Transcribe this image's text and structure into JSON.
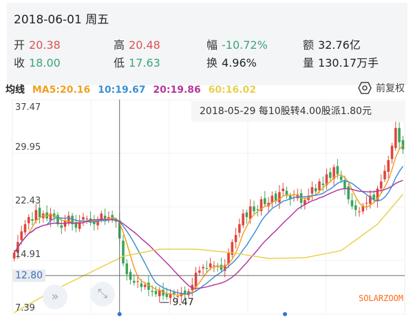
{
  "header": {
    "date": "2018-06-01 周五",
    "stats": [
      {
        "label": "开",
        "value": "20.38",
        "color": "red"
      },
      {
        "label": "高",
        "value": "20.48",
        "color": "red"
      },
      {
        "label": "幅",
        "value": "-10.72%",
        "color": "green"
      },
      {
        "label": "额",
        "value": "32.76亿",
        "color": "dark"
      },
      {
        "label": "收",
        "value": "18.00",
        "color": "green"
      },
      {
        "label": "低",
        "value": "17.63",
        "color": "green"
      },
      {
        "label": "换",
        "value": "4.96%",
        "color": "dark"
      },
      {
        "label": "量",
        "value": "130.17万手",
        "color": "dark"
      }
    ]
  },
  "ma_bar": {
    "title": "均线",
    "ma5": "MA5:20.16",
    "ma10": "10:19.67",
    "ma20": "20:19.86",
    "ma60": "60:16.02",
    "adjust": "前复权"
  },
  "colors": {
    "ma5": "#f0a020",
    "ma10": "#3d8fd1",
    "ma20": "#b2399a",
    "ma60": "#e8d04a",
    "up": "#e0453a",
    "down": "#3aa55a"
  },
  "notice": "2018-05-29 每10股转4.00股派1.80元",
  "chart_data": {
    "type": "candlestick",
    "y_ticks": [
      "37.47",
      "29.95",
      "22.43",
      "14.91",
      "7.39"
    ],
    "ylim": [
      7.39,
      37.47
    ],
    "crosshair_price": "12.80",
    "low_marker": "9.47",
    "closes": [
      16,
      17.5,
      19,
      20,
      21,
      20.5,
      22,
      21,
      21.5,
      20.8,
      21.5,
      21,
      20,
      19.5,
      20.5,
      21.2,
      20,
      19.5,
      20.5,
      21,
      20.8,
      20.2,
      20,
      20.5,
      21.5,
      20.8,
      21,
      20.6,
      20.4,
      18.0,
      14.5,
      13,
      12.2,
      11.8,
      12,
      11.2,
      11.5,
      10.8,
      10.5,
      10.2,
      10.8,
      10,
      9.8,
      10.3,
      10.1,
      9.9,
      10.4,
      10.2,
      10.6,
      11.5,
      13.2,
      13.5,
      14,
      13.8,
      14.5,
      14.2,
      14,
      13.6,
      14.3,
      16,
      17.5,
      18.5,
      20,
      21.5,
      21,
      22.5,
      21.8,
      22,
      23.5,
      22.8,
      23,
      24,
      23.2,
      24.5,
      25,
      24,
      23.5,
      23.8,
      24.2,
      23,
      23.4,
      24,
      25.2,
      24.6,
      26,
      25.5,
      27,
      26.5,
      28,
      27,
      26.2,
      25,
      23.5,
      22.5,
      22,
      21.8,
      22.6,
      23,
      24,
      23.5,
      25,
      26,
      27.5,
      29,
      31,
      33.5,
      31.5,
      30.5
    ],
    "ma60": [
      [
        0,
        7.6
      ],
      [
        10,
        10.5
      ],
      [
        20,
        13
      ],
      [
        30,
        15.5
      ],
      [
        40,
        16.5
      ],
      [
        50,
        16.5
      ],
      [
        60,
        16
      ],
      [
        70,
        15.2
      ],
      [
        80,
        15.3
      ],
      [
        90,
        16.3
      ],
      [
        100,
        20
      ],
      [
        107,
        24.2
      ]
    ],
    "crosshair_index": 29
  },
  "watermark": "SOLARZOOM"
}
